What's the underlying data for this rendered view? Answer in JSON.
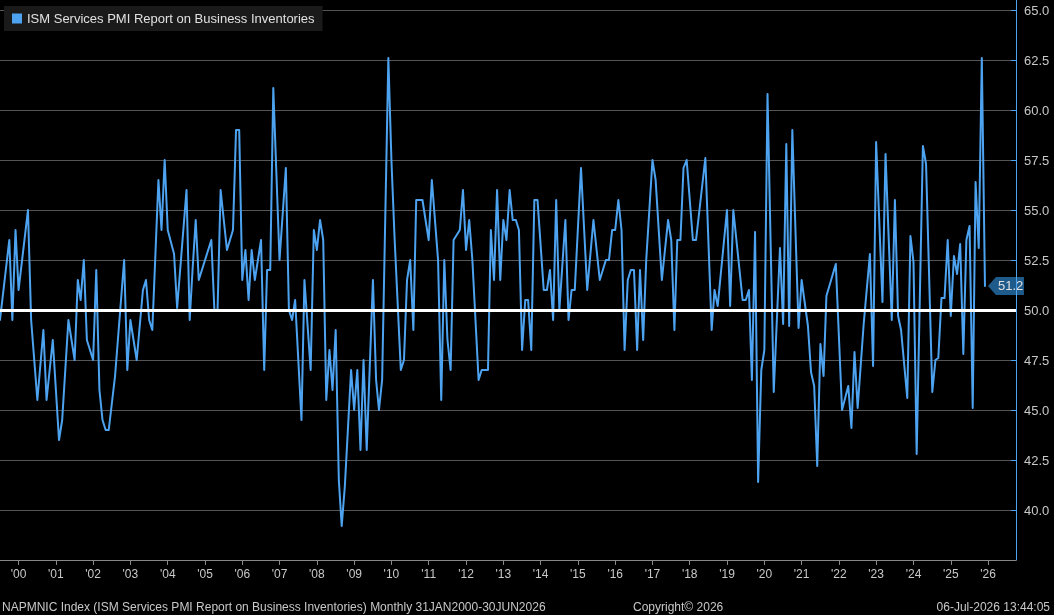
{
  "chart_data": {
    "type": "line",
    "annotations": [
      {
        "text": "51.2",
        "x": "2026-06",
        "y": 51.2
      },
      "NAPMNIC Index (ISM Services PMI Report on Business Inventories) Monthly 31JAN2000-30JUN2026",
      "Copyright© 2026",
      "06-Jul-2026 13:44:05"
    ],
    "series": [
      {
        "name": "ISM Services PMI Report on Business Inventories",
        "color": "#4da3f0",
        "x": [
          "2000-01",
          "2000-04",
          "2000-05",
          "2000-06",
          "2000-07",
          "2000-10",
          "2000-11",
          "2001-01",
          "2001-03",
          "2001-04",
          "2001-06",
          "2001-08",
          "2001-09",
          "2001-11",
          "2002-01",
          "2002-02",
          "2002-03",
          "2002-04",
          "2002-05",
          "2002-07",
          "2002-08",
          "2002-09",
          "2002-10",
          "2002-11",
          "2002-12",
          "2003-02",
          "2003-05",
          "2003-06",
          "2003-07",
          "2003-09",
          "2003-11",
          "2003-12",
          "2004-01",
          "2004-02",
          "2004-04",
          "2004-05",
          "2004-06",
          "2004-07",
          "2004-09",
          "2004-10",
          "2005-01",
          "2005-02",
          "2005-03",
          "2005-04",
          "2005-05",
          "2005-09",
          "2005-10",
          "2005-11",
          "2005-12",
          "2006-02",
          "2006-04",
          "2006-05",
          "2006-06",
          "2006-07",
          "2006-08",
          "2006-09",
          "2006-10",
          "2006-11",
          "2007-01",
          "2007-02",
          "2007-03",
          "2007-04",
          "2007-05",
          "2007-07",
          "2007-09",
          "2007-10",
          "2007-11",
          "2007-12",
          "2008-02",
          "2008-03",
          "2008-05",
          "2008-06",
          "2008-07",
          "2008-08",
          "2008-09",
          "2008-10",
          "2008-11",
          "2008-12",
          "2009-01",
          "2009-02",
          "2009-03",
          "2009-04",
          "2009-06",
          "2009-07",
          "2009-08",
          "2009-09",
          "2009-10",
          "2009-11",
          "2010-01",
          "2010-02",
          "2010-03",
          "2010-04",
          "2010-06",
          "2010-07",
          "2010-08",
          "2010-10",
          "2010-11",
          "2010-12",
          "2011-01",
          "2011-02",
          "2011-03",
          "2011-05",
          "2011-07",
          "2011-08",
          "2011-10",
          "2011-11",
          "2011-12",
          "2012-01",
          "2012-02",
          "2012-03",
          "2012-05",
          "2012-06",
          "2012-07",
          "2012-08",
          "2012-09",
          "2012-11",
          "2012-12",
          "2013-02",
          "2013-03",
          "2013-04",
          "2013-05",
          "2013-06",
          "2013-07",
          "2013-08",
          "2013-09",
          "2013-10",
          "2013-11",
          "2013-12",
          "2014-01",
          "2014-02",
          "2014-03",
          "2014-04",
          "2014-05",
          "2014-06",
          "2014-08",
          "2014-09",
          "2014-10",
          "2014-11",
          "2014-12",
          "2015-01",
          "2015-03",
          "2015-04",
          "2015-05",
          "2015-06",
          "2015-08",
          "2015-10",
          "2015-12",
          "2016-02",
          "2016-04",
          "2016-05",
          "2016-06",
          "2016-07",
          "2016-08",
          "2016-09",
          "2016-10",
          "2016-11",
          "2016-12",
          "2017-01",
          "2017-02",
          "2017-03",
          "2017-04",
          "2017-05",
          "2017-07",
          "2017-08",
          "2017-10",
          "2017-12",
          "2018-01",
          "2018-02",
          "2018-03",
          "2018-04",
          "2018-05",
          "2018-06",
          "2018-08",
          "2018-09",
          "2018-12",
          "2019-02",
          "2019-03",
          "2019-04",
          "2019-07",
          "2019-08",
          "2019-09",
          "2019-12",
          "2020-01",
          "2020-02",
          "2020-03",
          "2020-04",
          "2020-05",
          "2020-06",
          "2020-07",
          "2020-08",
          "2020-10",
          "2020-12",
          "2021-01",
          "2021-02",
          "2021-03",
          "2021-04",
          "2021-06",
          "2021-07",
          "2021-09",
          "2021-10",
          "2021-11",
          "2021-12",
          "2022-01",
          "2022-02",
          "2022-03",
          "2022-06",
          "2022-08",
          "2022-10",
          "2022-11",
          "2022-12",
          "2023-01",
          "2023-03",
          "2023-05",
          "2023-06",
          "2023-07",
          "2023-09",
          "2023-10",
          "2023-12",
          "2024-01",
          "2024-02",
          "2024-03",
          "2024-05",
          "2024-06",
          "2024-07",
          "2024-08",
          "2024-10",
          "2024-11",
          "2025-01",
          "2025-02",
          "2025-03",
          "2025-04",
          "2025-05",
          "2025-06",
          "2025-07",
          "2025-08",
          "2025-09",
          "2025-10",
          "2025-11",
          "2025-12",
          "2026-01",
          "2026-02",
          "2026-03",
          "2026-04",
          "2026-05",
          "2026-06"
        ],
        "values": [
          49.5,
          53.5,
          49.5,
          54.0,
          51.0,
          55.0,
          49.5,
          45.5,
          49.0,
          45.5,
          48.5,
          43.5,
          44.5,
          49.5,
          47.5,
          51.5,
          50.5,
          52.5,
          48.5,
          47.5,
          52.0,
          46.0,
          44.5,
          44.0,
          44.0,
          46.7,
          52.5,
          47.0,
          49.5,
          47.5,
          51.0,
          51.5,
          49.5,
          49.0,
          56.5,
          54.0,
          57.5,
          54.0,
          52.8,
          50.1,
          56.0,
          49.5,
          52.0,
          54.5,
          51.5,
          53.5,
          50.0,
          50.0,
          56.0,
          53.0,
          54.0,
          59.0,
          59.0,
          51.5,
          53.0,
          50.5,
          53.0,
          51.5,
          53.5,
          47.0,
          52.0,
          52.0,
          61.1,
          52.5,
          57.1,
          50.0,
          49.5,
          50.5,
          44.5,
          51.5,
          47.0,
          54.0,
          53.0,
          54.5,
          53.5,
          45.5,
          48.0,
          46.0,
          49.0,
          41.5,
          39.2,
          41.2,
          47.0,
          45.0,
          47.0,
          43.0,
          47.5,
          43.0,
          51.5,
          46.5,
          45.0,
          46.5,
          62.6,
          57.5,
          53.6,
          47.0,
          47.5,
          51.5,
          52.5,
          49.0,
          55.5,
          55.5,
          53.5,
          56.5,
          52.5,
          45.5,
          52.5,
          48.5,
          47.0,
          53.5,
          54.0,
          56.0,
          53.0,
          54.5,
          52.5,
          46.5,
          47.0,
          47.0,
          54.0,
          51.5,
          56.0,
          51.5,
          54.5,
          53.5,
          56.0,
          54.5,
          54.5,
          54.0,
          48.0,
          50.5,
          50.5,
          48.0,
          55.5,
          55.5,
          51.0,
          51.0,
          52.0,
          49.5,
          55.5,
          50.0,
          54.5,
          49.5,
          51.0,
          51.0,
          57.1,
          51.0,
          54.5,
          51.5,
          52.5,
          52.5,
          54.0,
          54.0,
          55.5,
          54.0,
          48.0,
          51.5,
          52.0,
          52.0,
          48.0,
          52.0,
          48.5,
          52.5,
          57.5,
          56.5,
          51.5,
          54.5,
          53.5,
          49.0,
          53.5,
          53.5,
          57.1,
          57.5,
          53.5,
          53.5,
          57.6,
          49.0,
          51.0,
          50.2,
          55.0,
          50.2,
          55.0,
          50.5,
          50.5,
          51.0,
          46.5,
          53.9,
          41.4,
          47.0,
          48.0,
          60.8,
          45.9,
          53.1,
          49.3,
          58.3,
          49.2,
          59.0,
          49.1,
          51.5,
          49.2,
          46.9,
          46.2,
          42.2,
          48.3,
          46.7,
          50.7,
          52.3,
          45.0,
          46.2,
          44.1,
          47.9,
          45.1,
          49.3,
          52.8,
          47.2,
          58.4,
          50.4,
          57.8,
          49.5,
          55.5,
          49.7,
          49.0,
          45.6,
          53.7,
          52.4,
          42.8,
          58.2,
          57.3,
          45.9,
          47.5,
          47.6,
          50.6,
          50.6,
          53.5,
          49.7,
          52.7,
          51.8,
          53.3,
          47.8,
          53.5,
          54.2,
          45.1,
          56.4,
          53.1,
          62.6,
          51.2
        ]
      }
    ],
    "xlim": [
      "2000-01",
      "2027-04"
    ],
    "xticks": [
      {
        "value": "2000-07",
        "label": "'00"
      },
      {
        "value": "2001-07",
        "label": "'01"
      },
      {
        "value": "2002-07",
        "label": "'02"
      },
      {
        "value": "2003-07",
        "label": "'03"
      },
      {
        "value": "2004-07",
        "label": "'04"
      },
      {
        "value": "2005-07",
        "label": "'05"
      },
      {
        "value": "2006-07",
        "label": "'06"
      },
      {
        "value": "2007-07",
        "label": "'07"
      },
      {
        "value": "2008-07",
        "label": "'08"
      },
      {
        "value": "2009-07",
        "label": "'09"
      },
      {
        "value": "2010-07",
        "label": "'10"
      },
      {
        "value": "2011-07",
        "label": "'11"
      },
      {
        "value": "2012-07",
        "label": "'12"
      },
      {
        "value": "2013-07",
        "label": "'13"
      },
      {
        "value": "2014-07",
        "label": "'14"
      },
      {
        "value": "2015-07",
        "label": "'15"
      },
      {
        "value": "2016-07",
        "label": "'16"
      },
      {
        "value": "2017-07",
        "label": "'17"
      },
      {
        "value": "2018-07",
        "label": "'18"
      },
      {
        "value": "2019-07",
        "label": "'19"
      },
      {
        "value": "2020-07",
        "label": "'20"
      },
      {
        "value": "2021-07",
        "label": "'21"
      },
      {
        "value": "2022-07",
        "label": "'22"
      },
      {
        "value": "2023-07",
        "label": "'23"
      },
      {
        "value": "2024-07",
        "label": "'24"
      },
      {
        "value": "2025-07",
        "label": "'25"
      },
      {
        "value": "2026-07",
        "label": "'26"
      }
    ],
    "ylim": [
      37.5,
      65.5
    ],
    "yticks": [
      {
        "value": 40,
        "label": "40.0"
      },
      {
        "value": 42.5,
        "label": "42.5"
      },
      {
        "value": 45,
        "label": "45.0"
      },
      {
        "value": 47.5,
        "label": "47.5"
      },
      {
        "value": 50,
        "label": "50.0"
      },
      {
        "value": 52.5,
        "label": "52.5"
      },
      {
        "value": 55,
        "label": "55.0"
      },
      {
        "value": 57.5,
        "label": "57.5"
      },
      {
        "value": 60,
        "label": "60.0"
      },
      {
        "value": 62.5,
        "label": "62.5"
      },
      {
        "value": 65,
        "label": "65.0"
      }
    ],
    "ref_lines": [
      {
        "axis": "y",
        "value": 50,
        "color": "#ffffff",
        "line_style": "solid"
      }
    ],
    "grid": "y",
    "legend": "top left",
    "marker": "none",
    "line_style": "solid"
  }
}
